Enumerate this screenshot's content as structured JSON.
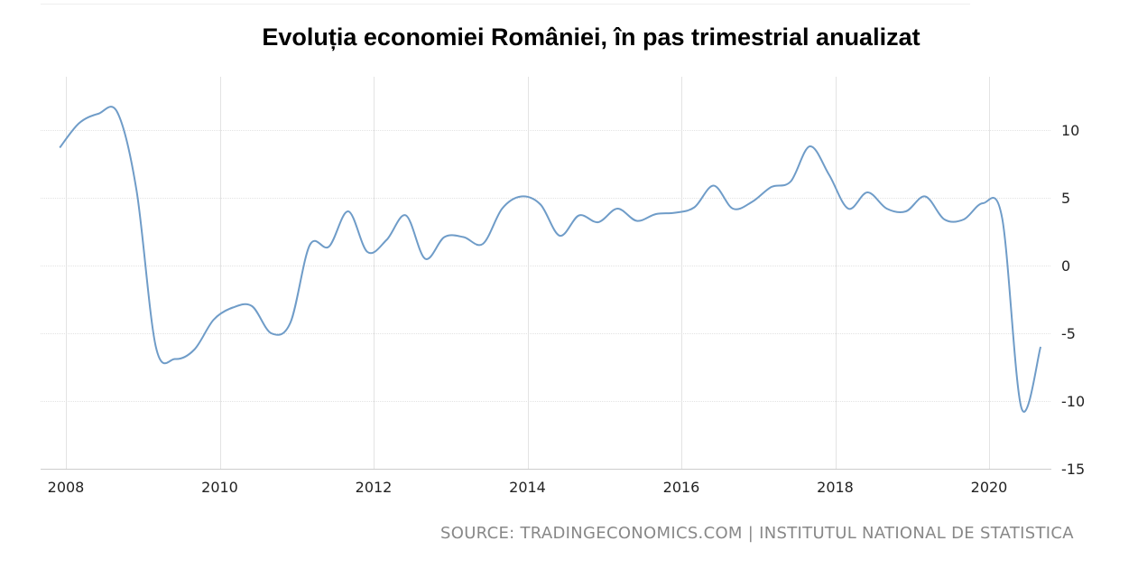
{
  "title": "Evoluția economiei României, în pas trimestrial anualizat",
  "source": "SOURCE: TRADINGECONOMICS.COM | INSTITUTUL NATIONAL DE STATISTICA",
  "colors": {
    "line": "#6f9cc8",
    "grid": "#e3e3e3",
    "axis": "#cccccc",
    "text": "#222222",
    "source": "#888888"
  },
  "chart_data": {
    "type": "line",
    "title": "Evoluția economiei României, în pas trimestrial anualizat",
    "xlabel": "",
    "ylabel": "",
    "xlim": [
      2007.8,
      2021.25
    ],
    "ylim": [
      -15,
      13
    ],
    "x_ticks": [
      2008,
      2010,
      2012,
      2014,
      2016,
      2018,
      2020
    ],
    "x_tick_labels": [
      "2008",
      "2010",
      "2012",
      "2014",
      "2016",
      "2018",
      "2020"
    ],
    "y_ticks": [
      10,
      5,
      0,
      -5,
      -10,
      -15
    ],
    "y_tick_labels": [
      "10",
      "5",
      "0",
      "-5",
      "-10",
      "-15"
    ],
    "y_axis_side": "right",
    "grid": true,
    "series": [
      {
        "x": [
          2007.92,
          2008.17,
          2008.42,
          2008.67,
          2008.92,
          2009.17,
          2009.42,
          2009.67,
          2009.92,
          2010.17,
          2010.42,
          2010.67,
          2010.92,
          2011.17,
          2011.42,
          2011.67,
          2011.92,
          2012.17,
          2012.42,
          2012.67,
          2012.92,
          2013.17,
          2013.42,
          2013.67,
          2013.92,
          2014.17,
          2014.42,
          2014.67,
          2014.92,
          2015.17,
          2015.42,
          2015.67,
          2015.92,
          2016.17,
          2016.42,
          2016.67,
          2016.92,
          2017.17,
          2017.42,
          2017.67,
          2017.92,
          2018.17,
          2018.42,
          2018.67,
          2018.92,
          2019.17,
          2019.42,
          2019.67,
          2019.92,
          2020.17,
          2020.42,
          2020.67
        ],
        "y": [
          8.7,
          10.5,
          11.2,
          11.3,
          5.5,
          -6.0,
          -6.9,
          -6.2,
          -4.0,
          -3.1,
          -3.0,
          -5.0,
          -4.2,
          1.5,
          1.4,
          4.0,
          1.0,
          1.9,
          3.7,
          0.5,
          2.1,
          2.1,
          1.6,
          4.2,
          5.1,
          4.5,
          2.2,
          3.7,
          3.2,
          4.2,
          3.3,
          3.8,
          3.9,
          4.3,
          5.9,
          4.2,
          4.7,
          5.8,
          6.2,
          8.8,
          6.7,
          4.2,
          5.4,
          4.2,
          4.0,
          5.1,
          3.4,
          3.4,
          4.6,
          3.5,
          -10.5,
          -6.0
        ]
      }
    ]
  }
}
